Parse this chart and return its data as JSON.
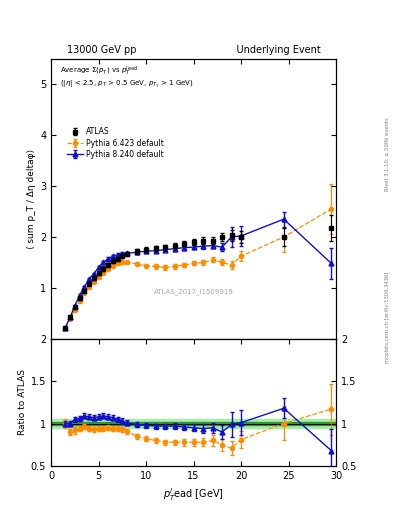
{
  "title_left": "13000 GeV pp",
  "title_right": "Underlying Event",
  "watermark": "ATLAS_2017_I1509919",
  "rivet_label": "Rivet 3.1.10, ≥ 500k events",
  "mcplots_label": "mcplots.cern.ch [arXiv:1306.3436]",
  "ylabel_main": "⟨ sum p_T / Δη deltaφ⟩",
  "ylabel_ratio": "Ratio to ATLAS",
  "xlabel": "p$_T^l$ead [GeV]",
  "ylim_main": [
    0,
    5.5
  ],
  "ylim_ratio": [
    0.5,
    2.0
  ],
  "xlim": [
    0,
    30
  ],
  "atlas_x": [
    1.5,
    2.0,
    2.5,
    3.0,
    3.5,
    4.0,
    4.5,
    5.0,
    5.5,
    6.0,
    6.5,
    7.0,
    7.5,
    8.0,
    9.0,
    10.0,
    11.0,
    12.0,
    13.0,
    14.0,
    15.0,
    16.0,
    17.0,
    18.0,
    19.0,
    20.0,
    24.5,
    29.5
  ],
  "atlas_y": [
    0.22,
    0.42,
    0.62,
    0.8,
    0.94,
    1.08,
    1.2,
    1.3,
    1.38,
    1.45,
    1.52,
    1.57,
    1.62,
    1.66,
    1.72,
    1.75,
    1.78,
    1.8,
    1.83,
    1.87,
    1.9,
    1.93,
    1.93,
    2.0,
    2.03,
    2.0,
    2.0,
    2.18
  ],
  "atlas_yerr": [
    0.02,
    0.02,
    0.03,
    0.03,
    0.03,
    0.03,
    0.04,
    0.04,
    0.04,
    0.04,
    0.04,
    0.04,
    0.04,
    0.04,
    0.05,
    0.05,
    0.05,
    0.05,
    0.05,
    0.05,
    0.06,
    0.06,
    0.07,
    0.08,
    0.1,
    0.12,
    0.18,
    0.25
  ],
  "py6_x": [
    1.5,
    2.0,
    2.5,
    3.0,
    3.5,
    4.0,
    4.5,
    5.0,
    5.5,
    6.0,
    6.5,
    7.0,
    7.5,
    8.0,
    9.0,
    10.0,
    11.0,
    12.0,
    13.0,
    14.0,
    15.0,
    16.0,
    17.0,
    18.0,
    19.0,
    20.0,
    24.5,
    29.5
  ],
  "py6_y": [
    0.22,
    0.38,
    0.57,
    0.75,
    0.9,
    1.02,
    1.12,
    1.22,
    1.3,
    1.38,
    1.43,
    1.48,
    1.5,
    1.5,
    1.47,
    1.43,
    1.42,
    1.4,
    1.42,
    1.45,
    1.48,
    1.5,
    1.55,
    1.5,
    1.45,
    1.62,
    2.0,
    2.55
  ],
  "py6_yerr": [
    0.01,
    0.02,
    0.02,
    0.02,
    0.02,
    0.02,
    0.02,
    0.03,
    0.03,
    0.03,
    0.03,
    0.03,
    0.03,
    0.03,
    0.03,
    0.03,
    0.04,
    0.04,
    0.04,
    0.04,
    0.04,
    0.05,
    0.05,
    0.06,
    0.08,
    0.1,
    0.3,
    0.5
  ],
  "py8_x": [
    1.5,
    2.0,
    2.5,
    3.0,
    3.5,
    4.0,
    4.5,
    5.0,
    5.5,
    6.0,
    6.5,
    7.0,
    7.5,
    8.0,
    9.0,
    10.0,
    11.0,
    12.0,
    13.0,
    14.0,
    15.0,
    16.0,
    17.0,
    18.0,
    19.0,
    20.0,
    24.5,
    29.5
  ],
  "py8_y": [
    0.22,
    0.42,
    0.65,
    0.85,
    1.02,
    1.17,
    1.28,
    1.4,
    1.5,
    1.57,
    1.62,
    1.65,
    1.67,
    1.68,
    1.7,
    1.72,
    1.73,
    1.75,
    1.77,
    1.79,
    1.8,
    1.82,
    1.83,
    1.8,
    2.0,
    2.02,
    2.35,
    1.48
  ],
  "py8_yerr": [
    0.01,
    0.02,
    0.02,
    0.02,
    0.02,
    0.02,
    0.02,
    0.03,
    0.03,
    0.03,
    0.03,
    0.03,
    0.03,
    0.03,
    0.03,
    0.03,
    0.03,
    0.03,
    0.04,
    0.04,
    0.04,
    0.05,
    0.05,
    0.08,
    0.2,
    0.2,
    0.15,
    0.3
  ],
  "py6_ratio": [
    1.0,
    0.9,
    0.92,
    0.94,
    0.96,
    0.94,
    0.93,
    0.94,
    0.94,
    0.95,
    0.94,
    0.94,
    0.93,
    0.91,
    0.85,
    0.82,
    0.8,
    0.78,
    0.78,
    0.78,
    0.78,
    0.78,
    0.8,
    0.75,
    0.71,
    0.81,
    1.0,
    1.17
  ],
  "py6_ratio_err": [
    0.05,
    0.04,
    0.04,
    0.03,
    0.03,
    0.03,
    0.03,
    0.03,
    0.03,
    0.03,
    0.03,
    0.03,
    0.03,
    0.03,
    0.03,
    0.03,
    0.03,
    0.03,
    0.03,
    0.04,
    0.04,
    0.05,
    0.06,
    0.07,
    0.08,
    0.1,
    0.2,
    0.3
  ],
  "py8_ratio": [
    1.0,
    1.0,
    1.05,
    1.06,
    1.09,
    1.08,
    1.07,
    1.08,
    1.09,
    1.08,
    1.07,
    1.05,
    1.03,
    1.01,
    0.99,
    0.98,
    0.97,
    0.97,
    0.97,
    0.96,
    0.95,
    0.94,
    0.95,
    0.9,
    0.99,
    1.01,
    1.18,
    0.68
  ],
  "py8_ratio_err": [
    0.03,
    0.03,
    0.03,
    0.03,
    0.03,
    0.03,
    0.03,
    0.03,
    0.03,
    0.03,
    0.03,
    0.03,
    0.03,
    0.03,
    0.03,
    0.03,
    0.03,
    0.03,
    0.04,
    0.04,
    0.04,
    0.05,
    0.06,
    0.08,
    0.15,
    0.15,
    0.12,
    0.25
  ],
  "atlas_color": "#000000",
  "py6_color": "#FF8C00",
  "py8_color": "#1010CC",
  "band_color_dark": "#228B22",
  "band_color_light": "#90EE90",
  "ratio_band_inner": 0.02,
  "ratio_band_outer": 0.05
}
